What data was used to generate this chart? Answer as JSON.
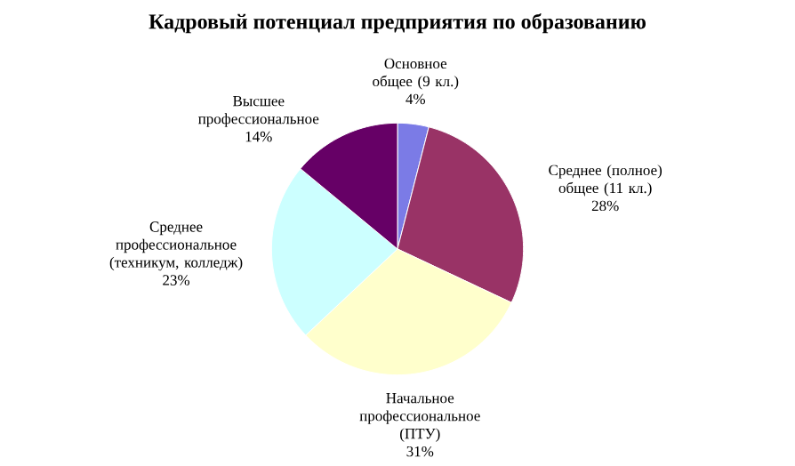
{
  "chart_data": {
    "type": "pie",
    "title": "Кадровый потенциал предприятия по образованию",
    "categories": [
      "Основное общее (9 кл.)",
      "Среднее (полное) общее (11 кл.)",
      "Начальное профессиональное (ПТУ)",
      "Среднее профессиональное (техникум, колледж)",
      "Высшее профессиональное"
    ],
    "values": [
      4,
      28,
      31,
      23,
      14
    ],
    "value_labels": [
      "4%",
      "28%",
      "31%",
      "23%",
      "14%"
    ],
    "colors": [
      "#7b7be6",
      "#993366",
      "#ffffcc",
      "#ccffff",
      "#660066"
    ]
  }
}
